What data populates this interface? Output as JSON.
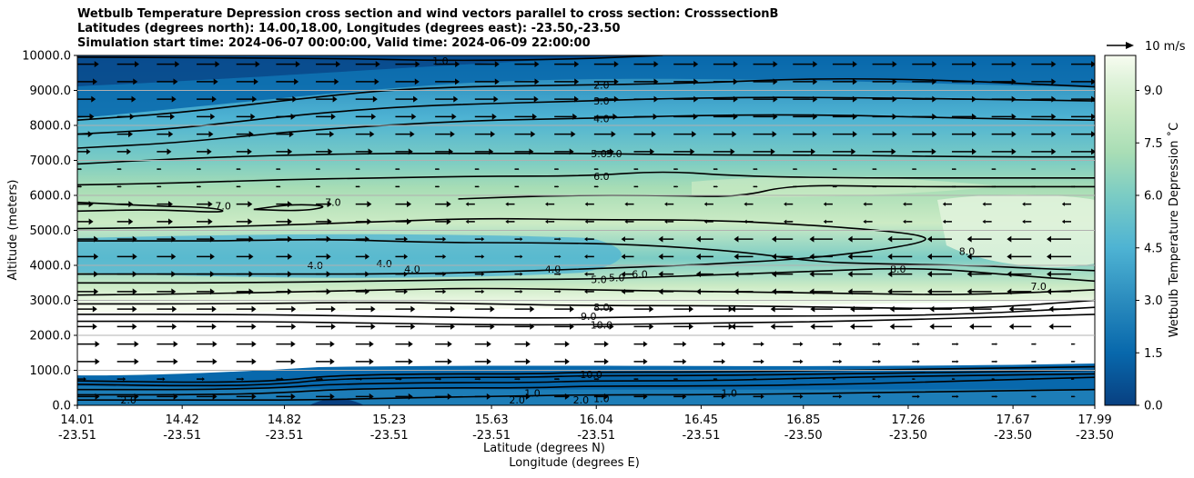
{
  "chart_data": {
    "type": "contour cross-section with wind vectors",
    "title": [
      "Wetbulb Temperature Depression cross section and wind vectors parallel to cross section: CrosssectionB",
      "Latitudes (degrees north): 14.00,18.00, Longitudes (degrees east): -23.50,-23.50",
      "Simulation start time: 2024-06-07 00:00:00, Valid time: 2024-06-09 22:00:00"
    ],
    "xlabel_lat": "Latitude (degrees N)",
    "xlabel_lon": "Longitude (degrees E)",
    "ylabel": "Altitude (meters)",
    "ylim": [
      0,
      10000
    ],
    "xlim": [
      14.01,
      17.99
    ],
    "grid": "horizontal",
    "x_ticks": [
      {
        "lat": "14.01",
        "lon": "-23.51"
      },
      {
        "lat": "14.42",
        "lon": "-23.51"
      },
      {
        "lat": "14.82",
        "lon": "-23.51"
      },
      {
        "lat": "15.23",
        "lon": "-23.51"
      },
      {
        "lat": "15.63",
        "lon": "-23.51"
      },
      {
        "lat": "16.04",
        "lon": "-23.51"
      },
      {
        "lat": "16.45",
        "lon": "-23.51"
      },
      {
        "lat": "16.85",
        "lon": "-23.50"
      },
      {
        "lat": "17.26",
        "lon": "-23.50"
      },
      {
        "lat": "17.67",
        "lon": "-23.50"
      },
      {
        "lat": "17.99",
        "lon": "-23.50"
      }
    ],
    "y_ticks": [
      "0.0",
      "1000.0",
      "2000.0",
      "3000.0",
      "4000.0",
      "5000.0",
      "6000.0",
      "7000.0",
      "8000.0",
      "9000.0",
      "10000.0"
    ],
    "colorbar": {
      "label": "Wetbulb Temperature Depression ˚C",
      "range": [
        0.0,
        10.0
      ],
      "ticks": [
        "0.0",
        "1.5",
        "3.0",
        "4.5",
        "6.0",
        "7.5",
        "9.0"
      ],
      "colors": [
        "#084081",
        "#0868ac",
        "#2b8cbe",
        "#4eb3d3",
        "#7bccc4",
        "#a8ddb5",
        "#ccebc5",
        "#e0f3db",
        "#f7fcf0"
      ]
    },
    "quiver_key": "10 m/s",
    "contour_labels": [
      {
        "text": "1.0",
        "lat": 15.43,
        "alt": 9850
      },
      {
        "text": "2.0",
        "lat": 16.06,
        "alt": 9150
      },
      {
        "text": "3.0",
        "lat": 16.06,
        "alt": 8700
      },
      {
        "text": "4.0",
        "lat": 16.06,
        "alt": 8200
      },
      {
        "text": "5.0",
        "lat": 16.05,
        "alt": 7200
      },
      {
        "text": "5.0",
        "lat": 16.11,
        "alt": 7200
      },
      {
        "text": "6.0",
        "lat": 16.06,
        "alt": 6550
      },
      {
        "text": "7.0",
        "lat": 14.58,
        "alt": 5700
      },
      {
        "text": "7.0",
        "lat": 15.01,
        "alt": 5800
      },
      {
        "text": "4.0",
        "lat": 15.21,
        "alt": 4050
      },
      {
        "text": "4.0",
        "lat": 15.32,
        "alt": 3900
      },
      {
        "text": "4.0",
        "lat": 14.94,
        "alt": 4000
      },
      {
        "text": "4.0",
        "lat": 15.87,
        "alt": 3900
      },
      {
        "text": "5.0",
        "lat": 16.05,
        "alt": 3600
      },
      {
        "text": "5.0",
        "lat": 16.12,
        "alt": 3650
      },
      {
        "text": "6.0",
        "lat": 16.21,
        "alt": 3750
      },
      {
        "text": "8.0",
        "lat": 16.06,
        "alt": 2800
      },
      {
        "text": "9.0",
        "lat": 16.01,
        "alt": 2550
      },
      {
        "text": "10.0",
        "lat": 16.06,
        "alt": 2300
      },
      {
        "text": "8.0",
        "lat": 17.22,
        "alt": 3900
      },
      {
        "text": "8.0",
        "lat": 17.49,
        "alt": 4400
      },
      {
        "text": "7.0",
        "lat": 17.77,
        "alt": 3400
      },
      {
        "text": "10.0",
        "lat": 16.02,
        "alt": 880
      },
      {
        "text": "1.0",
        "lat": 16.06,
        "alt": 200
      },
      {
        "text": "2.0",
        "lat": 14.21,
        "alt": 150
      },
      {
        "text": "2.0",
        "lat": 15.73,
        "alt": 150
      },
      {
        "text": "2.0",
        "lat": 15.98,
        "alt": 150
      },
      {
        "text": "1.0",
        "lat": 15.79,
        "alt": 350
      },
      {
        "text": "1.0",
        "lat": 16.56,
        "alt": 350
      }
    ],
    "contour_lines": [
      {
        "level": "1.0",
        "points": [
          [
            14.01,
            9950
          ],
          [
            15.0,
            9920
          ],
          [
            15.43,
            9850
          ],
          [
            15.9,
            9880
          ],
          [
            16.3,
            10000
          ]
        ]
      },
      {
        "level": "2.0",
        "points": [
          [
            14.01,
            8150
          ],
          [
            14.4,
            8350
          ],
          [
            14.8,
            8700
          ],
          [
            15.2,
            9000
          ],
          [
            15.5,
            9100
          ],
          [
            15.9,
            9150
          ],
          [
            16.4,
            9200
          ],
          [
            16.9,
            9350
          ],
          [
            17.4,
            9300
          ],
          [
            17.99,
            9100
          ]
        ]
      },
      {
        "level": "3.0",
        "points": [
          [
            14.01,
            7750
          ],
          [
            14.4,
            7900
          ],
          [
            14.8,
            8250
          ],
          [
            15.2,
            8500
          ],
          [
            15.5,
            8600
          ],
          [
            16.0,
            8700
          ],
          [
            16.5,
            8800
          ],
          [
            17.0,
            8800
          ],
          [
            17.5,
            8750
          ],
          [
            17.99,
            8700
          ]
        ]
      },
      {
        "level": "4.0",
        "points": [
          [
            14.01,
            7350
          ],
          [
            14.4,
            7500
          ],
          [
            14.8,
            7800
          ],
          [
            15.2,
            8000
          ],
          [
            15.6,
            8150
          ],
          [
            16.0,
            8200
          ],
          [
            16.5,
            8300
          ],
          [
            17.0,
            8300
          ],
          [
            17.5,
            8200
          ],
          [
            17.99,
            8150
          ]
        ]
      },
      {
        "level": "5.0",
        "points": [
          [
            14.01,
            6900
          ],
          [
            14.4,
            7050
          ],
          [
            14.8,
            7150
          ],
          [
            15.2,
            7200
          ],
          [
            15.6,
            7200
          ],
          [
            16.0,
            7200
          ],
          [
            16.5,
            7150
          ],
          [
            17.0,
            7150
          ],
          [
            17.5,
            7100
          ],
          [
            17.99,
            7100
          ]
        ]
      },
      {
        "level": "6.0",
        "points": [
          [
            14.01,
            6300
          ],
          [
            14.4,
            6350
          ],
          [
            14.8,
            6450
          ],
          [
            15.2,
            6500
          ],
          [
            15.6,
            6550
          ],
          [
            16.0,
            6550
          ],
          [
            16.3,
            6700
          ],
          [
            16.6,
            6550
          ],
          [
            17.0,
            6500
          ],
          [
            17.5,
            6500
          ],
          [
            17.99,
            6500
          ]
        ]
      },
      {
        "level": "7.0",
        "points": [
          [
            14.01,
            5800
          ],
          [
            14.3,
            5700
          ],
          [
            14.55,
            5650
          ],
          [
            14.6,
            5500
          ],
          [
            14.3,
            5600
          ],
          [
            14.01,
            5550
          ]
        ]
      },
      {
        "level": "7.0",
        "points": [
          [
            14.7,
            5600
          ],
          [
            14.85,
            5750
          ],
          [
            15.0,
            5700
          ],
          [
            14.9,
            5550
          ],
          [
            14.7,
            5600
          ]
        ]
      },
      {
        "level": "7.0",
        "points": [
          [
            15.5,
            5900
          ],
          [
            15.9,
            6000
          ],
          [
            16.3,
            6000
          ],
          [
            16.6,
            5950
          ],
          [
            16.8,
            6300
          ],
          [
            17.2,
            6250
          ],
          [
            17.6,
            6250
          ],
          [
            17.99,
            6250
          ]
        ]
      },
      {
        "level": "6.0",
        "points": [
          [
            14.01,
            5050
          ],
          [
            14.6,
            5100
          ],
          [
            15.2,
            5250
          ],
          [
            15.6,
            5350
          ],
          [
            16.0,
            5300
          ],
          [
            16.5,
            5300
          ],
          [
            17.0,
            5100
          ],
          [
            17.35,
            4850
          ],
          [
            17.3,
            4600
          ],
          [
            16.9,
            4200
          ],
          [
            16.4,
            4000
          ],
          [
            16.0,
            3900
          ],
          [
            15.6,
            3800
          ],
          [
            15.2,
            3750
          ],
          [
            14.6,
            3750
          ],
          [
            14.01,
            3750
          ]
        ]
      },
      {
        "level": "5.0",
        "points": [
          [
            14.01,
            4700
          ],
          [
            14.6,
            4700
          ],
          [
            15.0,
            4750
          ],
          [
            15.4,
            4650
          ],
          [
            15.8,
            4650
          ],
          [
            16.2,
            4600
          ],
          [
            16.6,
            4400
          ],
          [
            16.9,
            4100
          ],
          [
            17.1,
            4050
          ],
          [
            17.5,
            4000
          ],
          [
            17.8,
            3900
          ],
          [
            17.99,
            3850
          ]
        ]
      },
      {
        "level": "5.0",
        "points": [
          [
            14.01,
            3500
          ],
          [
            14.6,
            3500
          ],
          [
            15.2,
            3550
          ],
          [
            15.6,
            3600
          ],
          [
            16.0,
            3600
          ],
          [
            16.4,
            3700
          ],
          [
            16.8,
            3800
          ],
          [
            17.3,
            3950
          ],
          [
            17.7,
            3700
          ],
          [
            17.99,
            3550
          ]
        ]
      },
      {
        "level": "8.0",
        "points": [
          [
            14.01,
            3150
          ],
          [
            14.6,
            3200
          ],
          [
            15.2,
            3300
          ],
          [
            15.6,
            3350
          ],
          [
            16.0,
            3300
          ],
          [
            16.5,
            3250
          ],
          [
            17.0,
            3200
          ],
          [
            17.5,
            3150
          ],
          [
            17.99,
            3300
          ]
        ]
      },
      {
        "level": "9.0",
        "points": [
          [
            14.01,
            2900
          ],
          [
            14.6,
            2900
          ],
          [
            15.2,
            2950
          ],
          [
            15.6,
            2900
          ],
          [
            16.0,
            2850
          ],
          [
            16.5,
            2850
          ],
          [
            17.0,
            2800
          ],
          [
            17.5,
            2750
          ],
          [
            17.99,
            3000
          ]
        ]
      },
      {
        "level": "10.0",
        "points": [
          [
            14.01,
            2600
          ],
          [
            14.6,
            2600
          ],
          [
            15.2,
            2550
          ],
          [
            15.6,
            2500
          ],
          [
            16.0,
            2500
          ],
          [
            16.5,
            2550
          ],
          [
            17.0,
            2550
          ],
          [
            17.5,
            2600
          ],
          [
            17.99,
            2800
          ]
        ]
      },
      {
        "level": "10.0",
        "points": [
          [
            14.01,
            2400
          ],
          [
            14.6,
            2400
          ],
          [
            15.2,
            2350
          ],
          [
            15.6,
            2300
          ],
          [
            16.0,
            2300
          ],
          [
            16.5,
            2350
          ],
          [
            17.0,
            2400
          ],
          [
            17.5,
            2500
          ],
          [
            17.99,
            2600
          ]
        ]
      },
      {
        "level": "10.0",
        "points": [
          [
            14.01,
            700
          ],
          [
            14.5,
            650
          ],
          [
            14.8,
            700
          ],
          [
            15.0,
            850
          ],
          [
            15.4,
            900
          ],
          [
            15.8,
            900
          ],
          [
            16.0,
            950
          ],
          [
            16.5,
            950
          ],
          [
            17.0,
            1000
          ],
          [
            17.5,
            1050
          ],
          [
            17.99,
            1100
          ]
        ]
      },
      {
        "level": "5.0",
        "points": [
          [
            14.01,
            600
          ],
          [
            14.5,
            550
          ],
          [
            14.8,
            600
          ],
          [
            15.0,
            750
          ],
          [
            15.4,
            800
          ],
          [
            15.8,
            800
          ],
          [
            16.0,
            850
          ],
          [
            16.5,
            850
          ],
          [
            17.0,
            900
          ],
          [
            17.5,
            950
          ],
          [
            17.99,
            1000
          ]
        ]
      },
      {
        "level": "3.0",
        "points": [
          [
            14.01,
            450
          ],
          [
            14.5,
            450
          ],
          [
            14.8,
            500
          ],
          [
            15.0,
            600
          ],
          [
            15.4,
            650
          ],
          [
            15.8,
            650
          ],
          [
            16.0,
            700
          ],
          [
            16.5,
            700
          ],
          [
            17.0,
            800
          ],
          [
            17.5,
            850
          ],
          [
            17.99,
            900
          ]
        ]
      },
      {
        "level": "2.0",
        "points": [
          [
            14.01,
            300
          ],
          [
            14.5,
            300
          ],
          [
            14.8,
            350
          ],
          [
            15.0,
            450
          ],
          [
            15.4,
            500
          ],
          [
            15.8,
            500
          ],
          [
            16.0,
            550
          ],
          [
            16.5,
            550
          ],
          [
            17.0,
            600
          ],
          [
            17.5,
            700
          ],
          [
            17.99,
            800
          ]
        ]
      },
      {
        "level": "1.0",
        "points": [
          [
            14.01,
            150
          ],
          [
            14.5,
            150
          ],
          [
            14.9,
            150
          ],
          [
            15.2,
            200
          ],
          [
            15.6,
            250
          ],
          [
            16.0,
            300
          ],
          [
            16.5,
            300
          ],
          [
            17.0,
            350
          ],
          [
            17.5,
            400
          ],
          [
            17.99,
            450
          ]
        ]
      }
    ]
  }
}
